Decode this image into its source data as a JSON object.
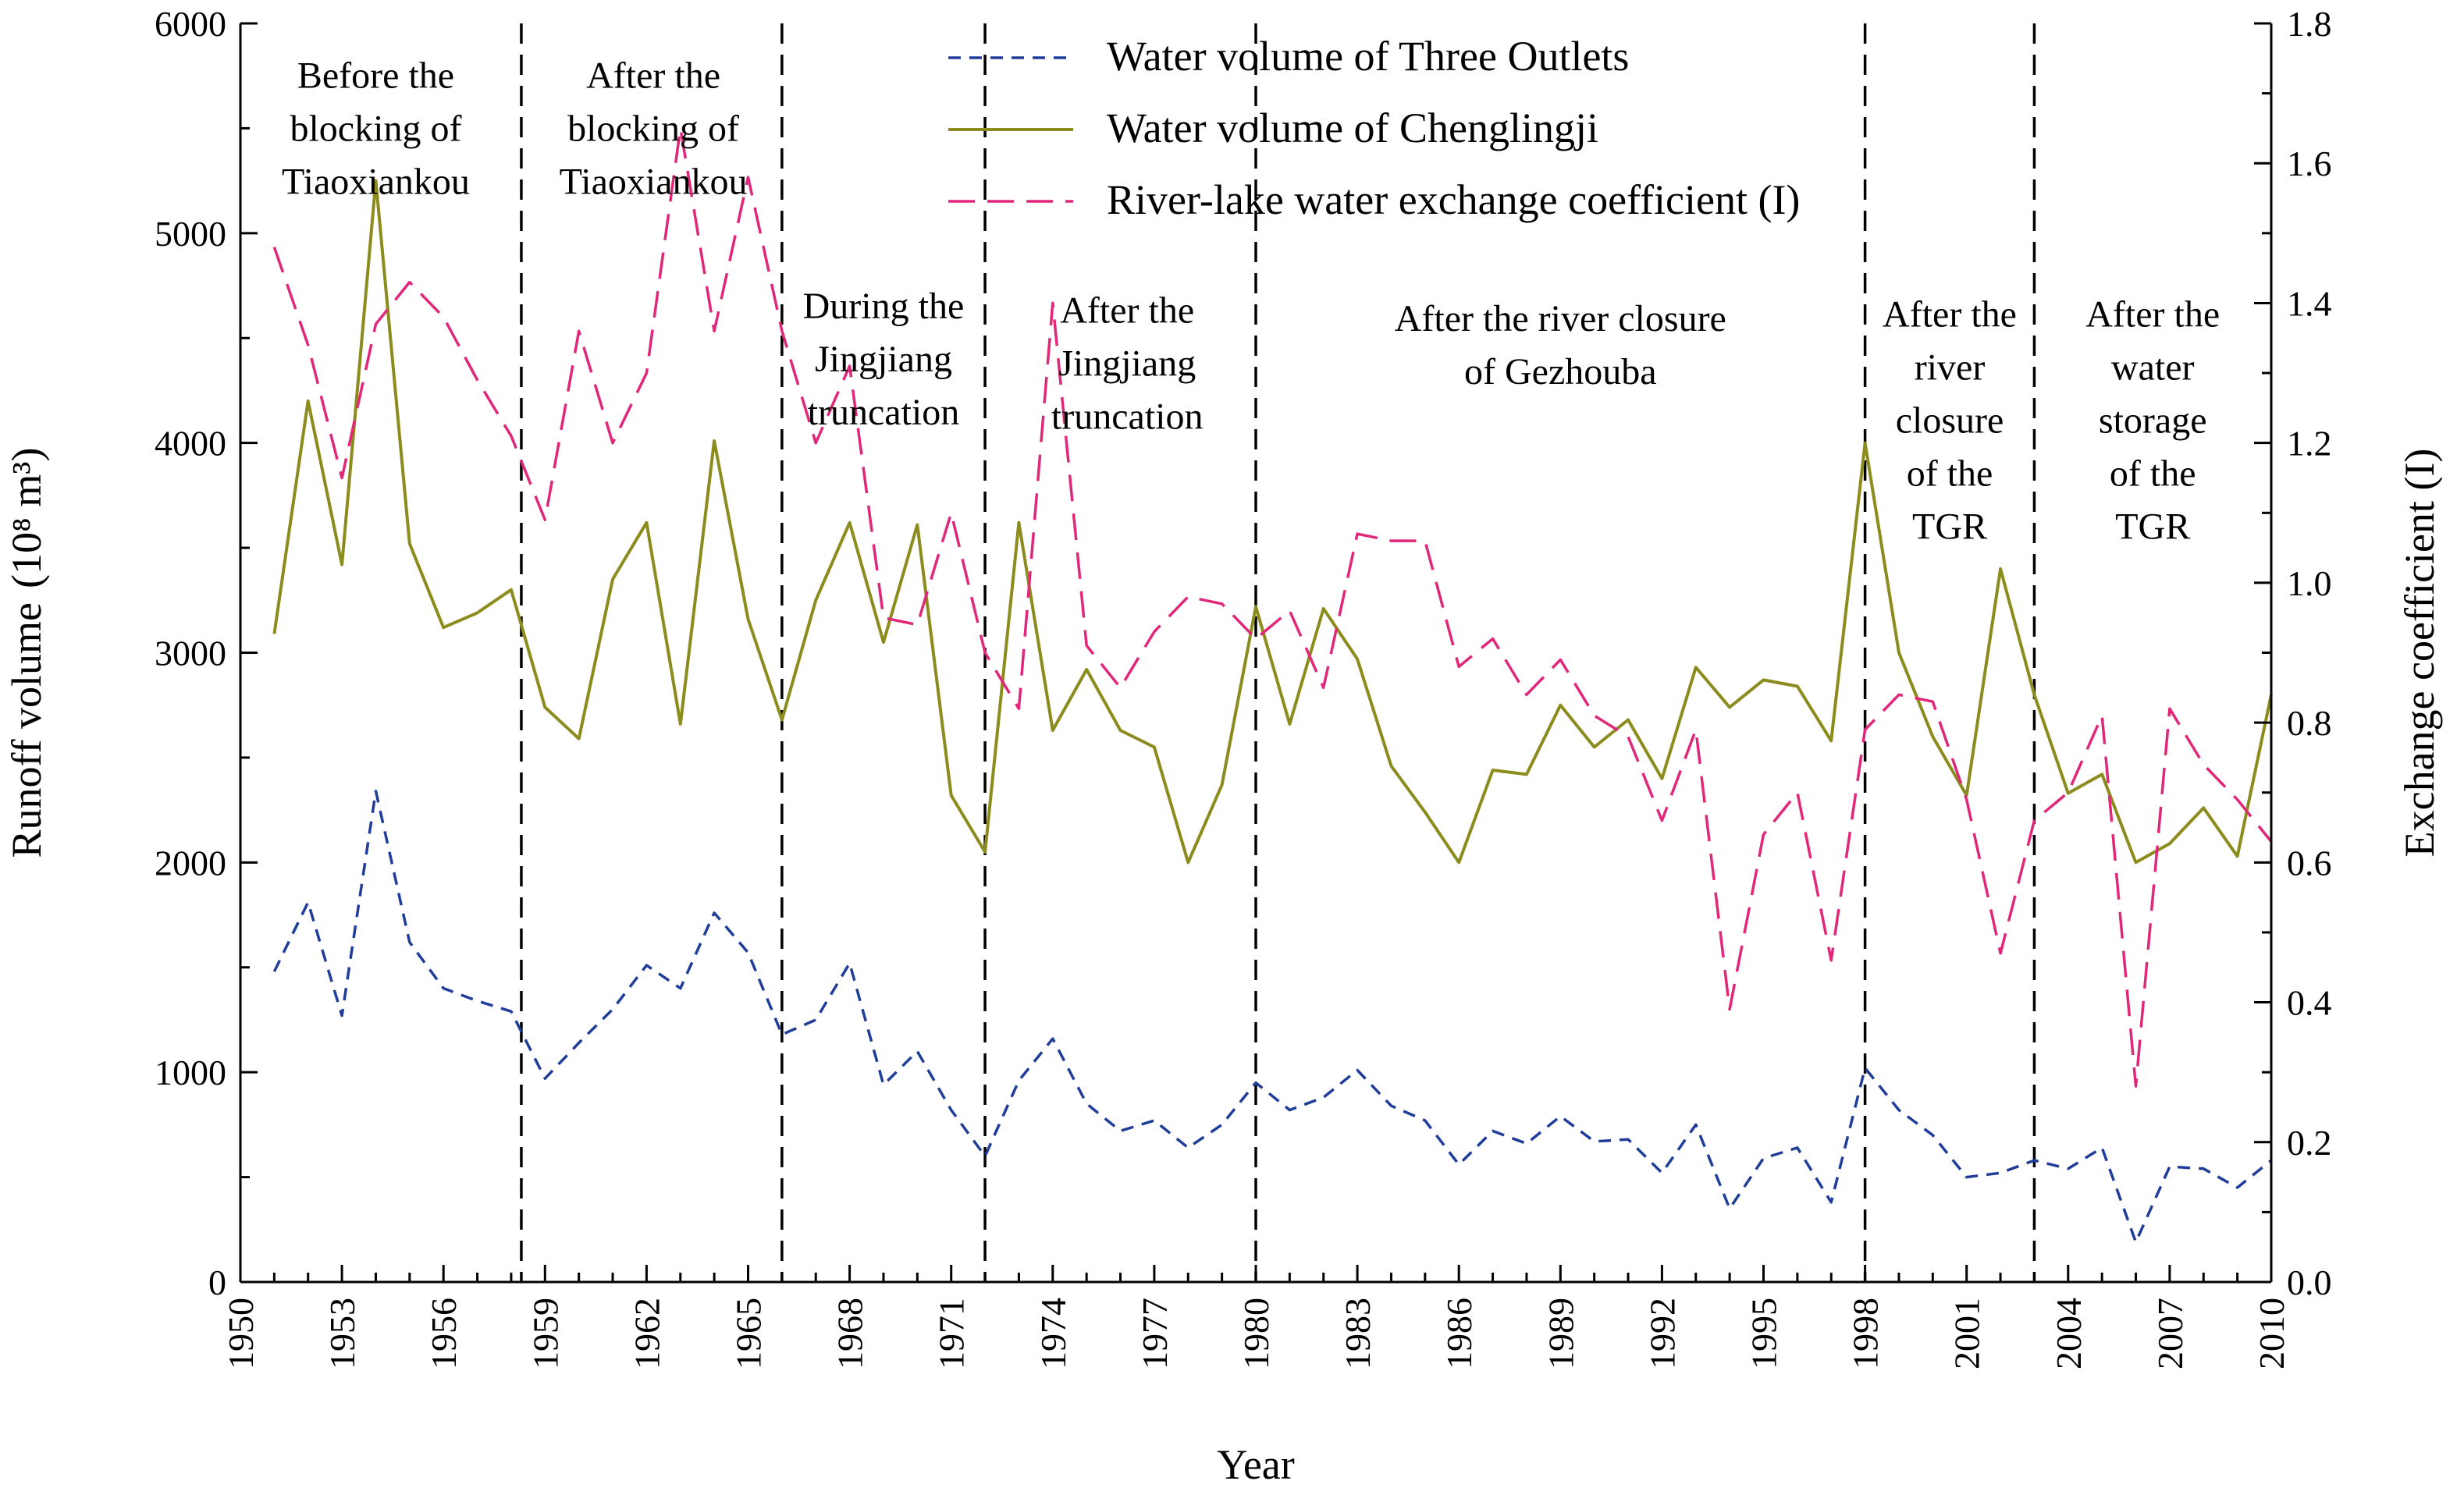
{
  "chart_data": {
    "type": "line",
    "xlabel": "Year",
    "ylabel_left": "Runoff volume",
    "ylabel_left_unit": "(10⁸ m³)",
    "ylabel_right": "Exchange coefficient (I)",
    "xlim": [
      1950,
      2010
    ],
    "ylim_left": [
      0,
      6000
    ],
    "ylim_right": [
      0.0,
      1.8
    ],
    "x_ticks": [
      1950,
      1953,
      1956,
      1959,
      1962,
      1965,
      1968,
      1971,
      1974,
      1977,
      1980,
      1983,
      1986,
      1989,
      1992,
      1995,
      1998,
      2001,
      2004,
      2007,
      2010
    ],
    "y_left_ticks": [
      0,
      1000,
      2000,
      3000,
      4000,
      5000,
      6000
    ],
    "y_right_ticks": [
      "0.0",
      "0.2",
      "0.4",
      "0.6",
      "0.8",
      "1.0",
      "1.2",
      "1.4",
      "1.6",
      "1.8"
    ],
    "legend_position": "top-center",
    "grid": false,
    "x": [
      1951,
      1952,
      1953,
      1954,
      1955,
      1956,
      1957,
      1958,
      1959,
      1960,
      1961,
      1962,
      1963,
      1964,
      1965,
      1966,
      1967,
      1968,
      1969,
      1970,
      1971,
      1972,
      1973,
      1974,
      1975,
      1976,
      1977,
      1978,
      1979,
      1980,
      1981,
      1982,
      1983,
      1984,
      1985,
      1986,
      1987,
      1988,
      1989,
      1990,
      1991,
      1992,
      1993,
      1994,
      1995,
      1996,
      1997,
      1998,
      1999,
      2000,
      2001,
      2002,
      2003,
      2004,
      2005,
      2006,
      2007,
      2008,
      2009,
      2010
    ],
    "series": [
      {
        "name": "Water volume of Three Outlets",
        "axis": "left",
        "color": "#1f3d99",
        "dash": "dashed",
        "values": [
          1480,
          1810,
          1270,
          2340,
          1620,
          1400,
          1340,
          1290,
          970,
          1140,
          1300,
          1510,
          1400,
          1760,
          1570,
          1180,
          1250,
          1520,
          940,
          1100,
          820,
          600,
          960,
          1160,
          850,
          720,
          770,
          640,
          750,
          950,
          820,
          880,
          1010,
          840,
          770,
          560,
          720,
          660,
          790,
          670,
          680,
          520,
          750,
          350,
          590,
          640,
          380,
          1020,
          820,
          700,
          500,
          520,
          580,
          540,
          640,
          190,
          550,
          540,
          450,
          580
        ]
      },
      {
        "name": "Water volume of Chenglingji",
        "axis": "left",
        "color": "#8c8c1e",
        "dash": "solid",
        "values": [
          3090,
          4200,
          3420,
          5250,
          3520,
          3120,
          3190,
          3300,
          2740,
          2590,
          3350,
          3620,
          2660,
          4010,
          3160,
          2680,
          3250,
          3620,
          3050,
          3610,
          2320,
          2050,
          3620,
          2630,
          2920,
          2630,
          2550,
          2000,
          2370,
          3220,
          2660,
          3210,
          2970,
          2460,
          2240,
          2000,
          2440,
          2420,
          2750,
          2550,
          2680,
          2400,
          2930,
          2740,
          2870,
          2840,
          2580,
          4000,
          3000,
          2600,
          2320,
          3400,
          2800,
          2330,
          2420,
          2000,
          2090,
          2260,
          2030,
          2800
        ]
      },
      {
        "name": "River-lake water exchange coefficient (I)",
        "axis": "right",
        "color": "#e0277a",
        "dash": "longdash",
        "values": [
          1.48,
          1.34,
          1.15,
          1.37,
          1.43,
          1.38,
          1.29,
          1.21,
          1.09,
          1.36,
          1.2,
          1.3,
          1.65,
          1.36,
          1.58,
          1.36,
          1.2,
          1.31,
          0.95,
          0.94,
          1.1,
          0.9,
          0.82,
          1.4,
          0.91,
          0.85,
          0.93,
          0.98,
          0.97,
          0.92,
          0.96,
          0.85,
          1.07,
          1.06,
          1.06,
          0.88,
          0.92,
          0.84,
          0.89,
          0.81,
          0.78,
          0.66,
          0.79,
          0.39,
          0.64,
          0.7,
          0.46,
          0.79,
          0.84,
          0.83,
          0.69,
          0.47,
          0.66,
          0.7,
          0.81,
          0.28,
          0.82,
          0.74,
          0.69,
          0.63
        ]
      }
    ],
    "periods": {
      "boundaries": [
        1958.3,
        1966,
        1972,
        1980,
        1998,
        2003
      ],
      "labels": [
        {
          "lines": [
            "Before the",
            "blocking of",
            "Tiaoxiankou"
          ],
          "x": 1954,
          "y_top": 5880
        },
        {
          "lines": [
            "After the",
            "blocking of",
            "Tiaoxiankou"
          ],
          "x": 1962.2,
          "y_top": 5880
        },
        {
          "lines": [
            "During the",
            "Jingjiang",
            "truncation"
          ],
          "x": 1969,
          "y_top": 4780
        },
        {
          "lines": [
            "After the",
            "Jingjiang",
            "truncation"
          ],
          "x": 1976.2,
          "y_top": 4760
        },
        {
          "lines": [
            "After the river closure",
            "of Gezhouba"
          ],
          "x": 1989,
          "y_top": 4720
        },
        {
          "lines": [
            "After the",
            "river",
            "closure",
            "of the",
            "TGR"
          ],
          "x": 2000.5,
          "y_top": 4740
        },
        {
          "lines": [
            "After the",
            "water",
            "storage",
            "of the",
            "TGR"
          ],
          "x": 2006.5,
          "y_top": 4740
        }
      ]
    }
  }
}
